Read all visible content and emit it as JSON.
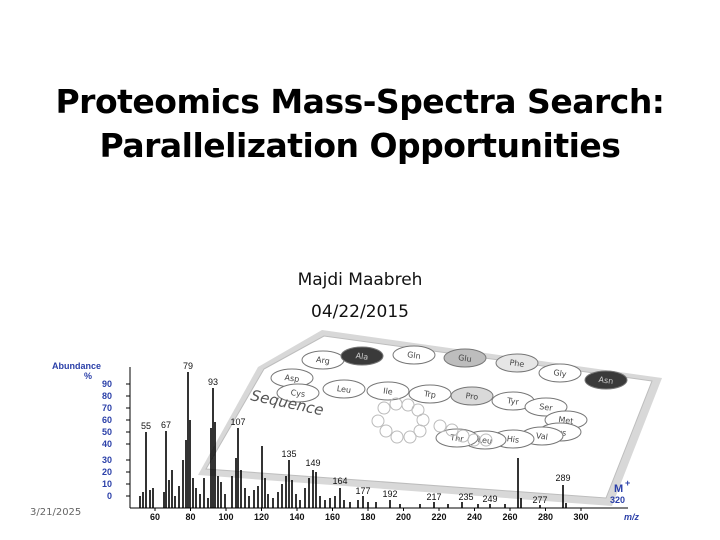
{
  "slide": {
    "title_line1": "Proteomics Mass-Spectra Search:",
    "title_line2": "Parallelization Opportunities",
    "author": "Majdi Maabreh",
    "date": "04/22/2015",
    "footer_date": "3/21/2025"
  },
  "figure": {
    "y_axis_title": "Abundance",
    "y_axis_unit": "%",
    "y_ticks": [
      "90",
      "80",
      "70",
      "60",
      "50",
      "40",
      "30",
      "20",
      "10",
      "0"
    ],
    "x_ticks": [
      "60",
      "80",
      "100",
      "120",
      "140",
      "160",
      "180",
      "200",
      "220",
      "240",
      "260",
      "280",
      "300"
    ],
    "x_axis_label": "m/z",
    "molecular_ion_label": "M",
    "molecular_ion_value": "320",
    "peak_labels": [
      "79",
      "93",
      "55",
      "67",
      "107",
      "135",
      "149",
      "164",
      "177",
      "192",
      "217",
      "235",
      "249",
      "277",
      "289"
    ],
    "card_label": "Sequence",
    "amino_acids": [
      "Arg",
      "Ala",
      "Gln",
      "Glu",
      "Phe",
      "Gly",
      "Asp",
      "Cys",
      "Leu",
      "Ile",
      "Trp",
      "Pro",
      "Tyr",
      "Ser",
      "Asn",
      "Met",
      "Lys",
      "Val",
      "His",
      "Leu",
      "Thr"
    ],
    "colors": {
      "axis_title": "#2a3fa8",
      "molecular_ion": "#2a3fa8",
      "dark_circle": "#3a3a3a"
    }
  }
}
